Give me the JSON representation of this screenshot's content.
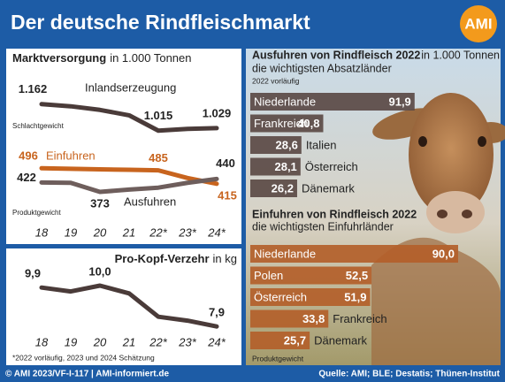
{
  "title": "Der deutsche Rindfleischmarkt",
  "logo": "AMI",
  "footer": {
    "left": "© AMI 2023/VF-I-117 | AMI-informiert.de",
    "right": "Quelle: AMI; BLE; Destatis; Thünen-Institut"
  },
  "chart_data": [
    {
      "type": "line",
      "title": "Marktversorgung",
      "unit": "in 1.000 Tonnen",
      "notes": [
        "Schlachtgewicht",
        "Produktgewicht"
      ],
      "categories": [
        "18",
        "19",
        "20",
        "21",
        "22*",
        "23*",
        "24*"
      ],
      "ylim": [
        350,
        520
      ],
      "y2lim": [
        950,
        1200
      ],
      "series": [
        {
          "name": "Inlandserzeugung",
          "color": "#4a3b39",
          "axis": "y2",
          "values": [
            1162,
            1150,
            1130,
            1100,
            1015,
            1025,
            1029
          ],
          "value_labels": [
            "1.162",
            null,
            null,
            null,
            "1.015",
            null,
            "1.029"
          ]
        },
        {
          "name": "Einfuhren",
          "color": "#c8641e",
          "values": [
            496,
            493,
            490,
            488,
            485,
            445,
            415
          ],
          "value_labels": [
            "496",
            null,
            null,
            null,
            "485",
            null,
            "415"
          ]
        },
        {
          "name": "Ausfuhren",
          "color": "#6e5e5c",
          "values": [
            422,
            420,
            373,
            385,
            395,
            420,
            440
          ],
          "value_labels": [
            "422",
            null,
            "373",
            null,
            null,
            null,
            "440"
          ]
        }
      ]
    },
    {
      "type": "line",
      "title": "Pro-Kopf-Verzehr",
      "unit": "in kg",
      "footnote": "*2022 vorläufig, 2023 und 2024 Schätzung",
      "categories": [
        "18",
        "19",
        "20",
        "21",
        "22*",
        "23*",
        "24*"
      ],
      "ylim": [
        7,
        10.5
      ],
      "series": [
        {
          "name": "Pro-Kopf-Verzehr",
          "color": "#4a3b39",
          "values": [
            9.9,
            9.7,
            10.0,
            9.6,
            8.4,
            8.2,
            7.9
          ],
          "value_labels": [
            "9,9",
            null,
            "10,0",
            null,
            null,
            null,
            "7,9"
          ]
        }
      ]
    },
    {
      "type": "bar",
      "title": "Ausfuhren von Rindfleisch 2022",
      "unit": "in 1.000 Tonnen",
      "subtitle": "die wichtigsten Absatzländer",
      "note": "2022 vorläufig",
      "categories": [
        "Niederlande",
        "Frankreich",
        "Italien",
        "Österreich",
        "Dänemark"
      ],
      "values": [
        91.9,
        40.8,
        28.6,
        28.1,
        26.2
      ],
      "value_labels": [
        "91,9",
        "40,8",
        "28,6",
        "28,1",
        "26,2"
      ],
      "color": "#5b4a45",
      "xlim": [
        0,
        92
      ]
    },
    {
      "type": "bar",
      "title": "Einfuhren von Rindfleisch 2022",
      "subtitle": "die wichtigsten Einfuhrländer",
      "note": "Produktgewicht",
      "categories": [
        "Niederlande",
        "Polen",
        "Österreich",
        "Frankreich",
        "Dänemark"
      ],
      "values": [
        90.0,
        52.5,
        51.9,
        33.8,
        25.7
      ],
      "value_labels": [
        "90,0",
        "52,5",
        "51,9",
        "33,8",
        "25,7"
      ],
      "color": "#b3602a",
      "xlim": [
        0,
        90
      ]
    }
  ]
}
